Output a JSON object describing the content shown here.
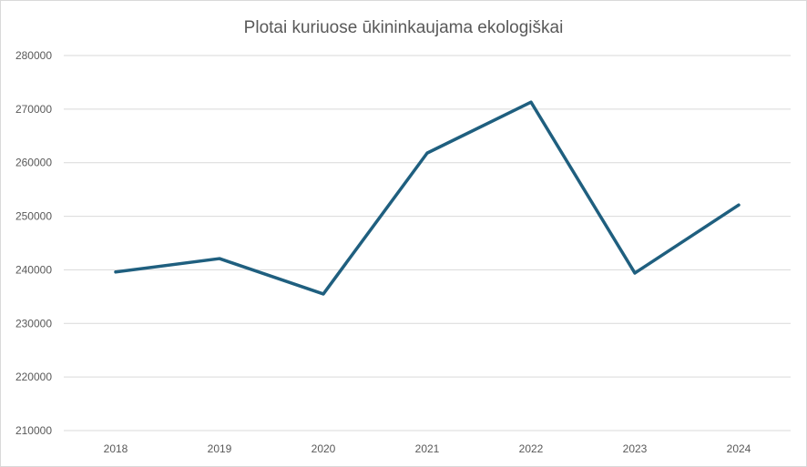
{
  "chart_data": {
    "type": "line",
    "title": "Plotai kuriuose ūkininkaujama ekologiškai",
    "xlabel": "",
    "ylabel": "",
    "categories": [
      "2018",
      "2019",
      "2020",
      "2021",
      "2022",
      "2023",
      "2024"
    ],
    "series": [
      {
        "values": [
          239600,
          242100,
          235500,
          261800,
          271300,
          239400,
          252100
        ],
        "color": "#1f5f7f"
      }
    ],
    "ylim": [
      210000,
      280000
    ],
    "yticks": [
      "210000",
      "220000",
      "230000",
      "240000",
      "250000",
      "260000",
      "270000",
      "280000"
    ],
    "grid": true,
    "legend": "none",
    "colors": {
      "gridline": "#d9d9d9",
      "text": "#595959",
      "frame": "#d9d9d9"
    }
  }
}
